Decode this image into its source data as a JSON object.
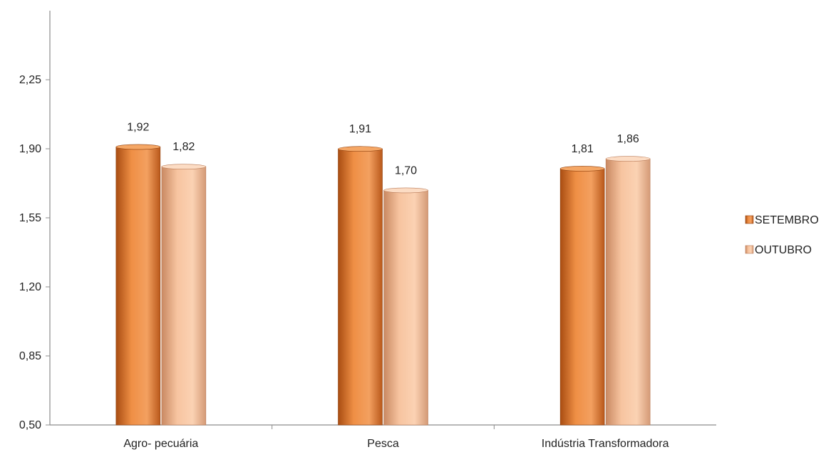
{
  "chart_data": {
    "type": "bar",
    "categories": [
      "Agro- pecuária",
      "Pesca",
      "Indústria Transformadora"
    ],
    "series": [
      {
        "name": "SETEMBRO",
        "values": [
          1.92,
          1.91,
          1.81
        ],
        "labels": [
          "1,92",
          "1,91",
          "1,81"
        ]
      },
      {
        "name": "OUTUBRO",
        "values": [
          1.82,
          1.7,
          1.86
        ],
        "labels": [
          "1,82",
          "1,70",
          "1,86"
        ]
      }
    ],
    "yticks": [
      0.5,
      0.85,
      1.2,
      1.55,
      1.9,
      2.25
    ],
    "ytick_labels": [
      "0,50",
      "0,85",
      "1,20",
      "1,55",
      "1,90",
      "2,25"
    ],
    "ylim": [
      0.5,
      2.6
    ],
    "legend_position": "right",
    "grid": false,
    "colors": {
      "SETEMBRO": "#E87722",
      "OUTUBRO": "#F4B183"
    }
  }
}
